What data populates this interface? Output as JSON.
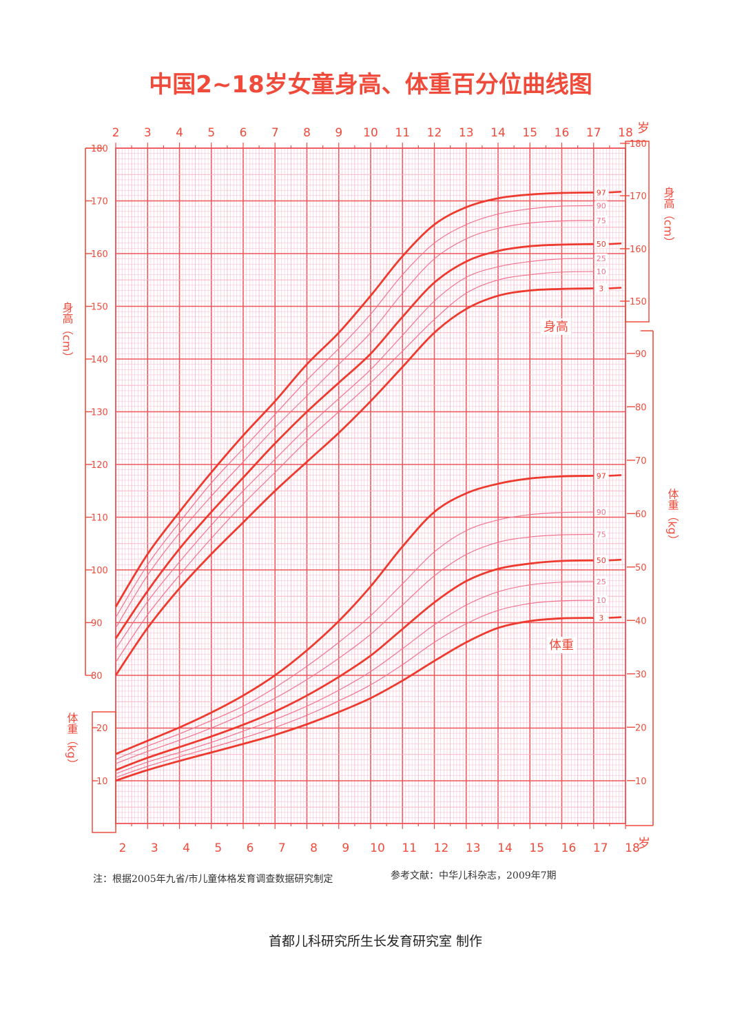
{
  "page": {
    "title": "中国2~18岁女童身高、体重百分位曲线图",
    "note_left": "注：根据2005年九省/市儿童体格发育调查数据研究制定",
    "note_right": "参考文献：中华儿科杂志，2009年7期",
    "footer": "首都儿科研究所生长发育研究室 制作",
    "age_unit": "岁"
  },
  "colors": {
    "accent": "#f04a3a",
    "grid_major": "#f0555c",
    "grid_minor": "#f9b6c8",
    "curve_main": "#ee3a2e",
    "curve_minor": "#f2738f",
    "background": "#ffffff"
  },
  "chart_data": [
    {
      "type": "line",
      "name_label": "身高",
      "ylabel": "身高（cm）",
      "xlabel": "岁",
      "xlim": [
        2,
        18
      ],
      "ylim": [
        80,
        180
      ],
      "ticks_left": [
        80,
        90,
        100,
        110,
        120,
        130,
        140,
        150,
        160,
        170,
        180
      ],
      "ticks_right": [
        150,
        160,
        170,
        180
      ],
      "x": [
        2,
        3,
        4,
        5,
        6,
        7,
        8,
        9,
        10,
        11,
        12,
        13,
        14,
        15,
        16,
        17
      ],
      "series": [
        {
          "name": "97",
          "values": [
            93.0,
            103.0,
            111.0,
            118.5,
            125.5,
            132.0,
            139.0,
            145.0,
            152.0,
            159.5,
            165.5,
            168.8,
            170.5,
            171.2,
            171.5,
            171.6
          ]
        },
        {
          "name": "90",
          "values": [
            91.0,
            101.0,
            109.0,
            116.5,
            123.0,
            129.5,
            136.0,
            142.0,
            148.5,
            156.0,
            162.0,
            165.5,
            167.5,
            168.5,
            169.0,
            169.1
          ]
        },
        {
          "name": "75",
          "values": [
            89.0,
            99.0,
            107.0,
            114.0,
            120.5,
            127.0,
            133.0,
            139.0,
            145.0,
            152.5,
            159.0,
            162.8,
            164.8,
            165.8,
            166.2,
            166.3
          ]
        },
        {
          "name": "50",
          "values": [
            87.0,
            96.0,
            104.0,
            111.0,
            117.5,
            124.0,
            130.0,
            135.5,
            141.0,
            148.0,
            154.5,
            158.5,
            160.5,
            161.4,
            161.7,
            161.8
          ]
        },
        {
          "name": "25",
          "values": [
            85.0,
            94.0,
            101.5,
            108.5,
            115.0,
            121.0,
            127.0,
            132.5,
            138.0,
            144.5,
            151.0,
            155.5,
            157.5,
            158.5,
            159.0,
            159.1
          ]
        },
        {
          "name": "10",
          "values": [
            82.5,
            91.5,
            99.0,
            106.0,
            112.5,
            118.5,
            124.5,
            130.0,
            135.5,
            141.5,
            147.5,
            152.5,
            155.0,
            156.0,
            156.5,
            156.6
          ]
        },
        {
          "name": "3",
          "values": [
            80.0,
            89.0,
            96.5,
            103.0,
            109.0,
            115.0,
            120.5,
            126.0,
            132.0,
            138.5,
            145.0,
            149.5,
            152.0,
            153.0,
            153.3,
            153.4
          ]
        }
      ]
    },
    {
      "type": "line",
      "name_label": "体重",
      "ylabel": "体重（kg）",
      "xlabel": "岁",
      "xlim": [
        2,
        18
      ],
      "ylim": [
        0,
        90
      ],
      "ticks_left": [
        10,
        20
      ],
      "ticks_right": [
        10,
        20,
        30,
        40,
        50,
        60,
        70,
        80,
        90
      ],
      "x": [
        2,
        3,
        4,
        5,
        6,
        7,
        8,
        9,
        10,
        11,
        12,
        13,
        14,
        15,
        16,
        17
      ],
      "series": [
        {
          "name": "97",
          "values": [
            15.0,
            17.5,
            20.0,
            22.8,
            26.0,
            29.8,
            34.5,
            40.0,
            46.5,
            54.0,
            60.5,
            64.0,
            65.8,
            66.8,
            67.2,
            67.3
          ]
        },
        {
          "name": "90",
          "values": [
            14.0,
            16.5,
            18.8,
            21.3,
            24.0,
            27.5,
            31.5,
            36.0,
            41.0,
            47.0,
            53.0,
            57.0,
            59.0,
            60.0,
            60.4,
            60.5
          ]
        },
        {
          "name": "75",
          "values": [
            13.2,
            15.5,
            17.6,
            19.9,
            22.5,
            25.5,
            29.0,
            33.0,
            37.5,
            43.0,
            48.5,
            52.5,
            54.8,
            55.8,
            56.2,
            56.3
          ]
        },
        {
          "name": "50",
          "values": [
            12.0,
            14.3,
            16.3,
            18.3,
            20.5,
            23.0,
            26.0,
            29.5,
            33.5,
            38.5,
            43.5,
            47.5,
            49.8,
            50.8,
            51.3,
            51.4
          ]
        },
        {
          "name": "25",
          "values": [
            11.3,
            13.5,
            15.3,
            17.2,
            19.3,
            21.5,
            24.0,
            27.0,
            30.5,
            34.8,
            39.3,
            43.0,
            45.5,
            46.8,
            47.3,
            47.4
          ]
        },
        {
          "name": "10",
          "values": [
            10.6,
            12.7,
            14.5,
            16.2,
            18.0,
            20.0,
            22.3,
            25.0,
            28.0,
            31.8,
            36.0,
            39.5,
            42.0,
            43.3,
            43.8,
            43.9
          ]
        },
        {
          "name": "3",
          "values": [
            10.0,
            12.0,
            13.7,
            15.3,
            16.9,
            18.6,
            20.6,
            22.9,
            25.5,
            28.8,
            32.5,
            36.0,
            38.7,
            40.0,
            40.5,
            40.6
          ]
        }
      ]
    }
  ]
}
